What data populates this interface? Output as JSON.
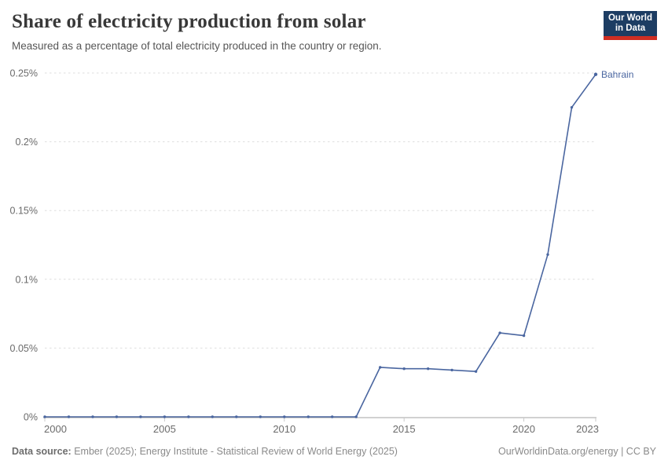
{
  "header": {
    "title": "Share of electricity production from solar",
    "subtitle": "Measured as a percentage of total electricity produced in the country or region.",
    "logo": {
      "line1": "Our World",
      "line2": "in Data"
    }
  },
  "chart_data": {
    "type": "line",
    "title": "Share of electricity production from solar",
    "xlabel": "",
    "ylabel": "",
    "xlim": [
      2000,
      2023
    ],
    "ylim": [
      0,
      0.25
    ],
    "xticks": [
      2000,
      2005,
      2010,
      2015,
      2020,
      2023
    ],
    "yticks": [
      0,
      0.05,
      0.1,
      0.15,
      0.2,
      0.25
    ],
    "ytick_labels": [
      "0%",
      "0.05%",
      "0.1%",
      "0.15%",
      "0.2%",
      "0.25%"
    ],
    "grid": "horizontal-dashed",
    "legend_position": "end-of-line-label",
    "series": [
      {
        "name": "Bahrain",
        "color": "#4a66a0",
        "x": [
          2000,
          2001,
          2002,
          2003,
          2004,
          2005,
          2006,
          2007,
          2008,
          2009,
          2010,
          2011,
          2012,
          2013,
          2014,
          2015,
          2016,
          2017,
          2018,
          2019,
          2020,
          2021,
          2022,
          2023
        ],
        "values": [
          0,
          0,
          0,
          0,
          0,
          0,
          0,
          0,
          0,
          0,
          0,
          0,
          0,
          0,
          0.036,
          0.035,
          0.035,
          0.034,
          0.033,
          0.061,
          0.059,
          0.118,
          0.225,
          0.249
        ]
      }
    ]
  },
  "footer": {
    "source_label": "Data source:",
    "source_text": " Ember (2025); Energy Institute - Statistical Review of World Energy (2025)",
    "credit": "OurWorldinData.org/energy | CC BY"
  },
  "colors": {
    "line": "#4a66a0",
    "grid": "#dedede",
    "axis": "#a3a3a3",
    "tick": "#c9c9c9",
    "tick_label": "#6b6b6b",
    "title": "#383838",
    "logo_bg": "#1d3d63",
    "logo_red": "#cf2e23"
  }
}
